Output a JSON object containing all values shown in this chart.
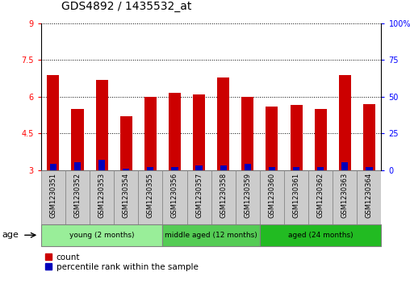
{
  "title": "GDS4892 / 1435532_at",
  "samples": [
    "GSM1230351",
    "GSM1230352",
    "GSM1230353",
    "GSM1230354",
    "GSM1230355",
    "GSM1230356",
    "GSM1230357",
    "GSM1230358",
    "GSM1230359",
    "GSM1230360",
    "GSM1230361",
    "GSM1230362",
    "GSM1230363",
    "GSM1230364"
  ],
  "count_values": [
    6.9,
    5.5,
    6.7,
    5.2,
    6.0,
    6.15,
    6.1,
    6.8,
    6.0,
    5.6,
    5.65,
    5.5,
    6.9,
    5.7
  ],
  "percentile_values": [
    4,
    5,
    7,
    1,
    2,
    2,
    3,
    3,
    4,
    2,
    2,
    2,
    5,
    2
  ],
  "base_value": 3.0,
  "ylim_left": [
    3,
    9
  ],
  "ylim_right": [
    0,
    100
  ],
  "yticks_left": [
    3,
    4.5,
    6,
    7.5,
    9
  ],
  "ytick_labels_left": [
    "3",
    "4.5",
    "6",
    "7.5",
    "9"
  ],
  "yticks_right": [
    0,
    25,
    50,
    75,
    100
  ],
  "ytick_labels_right": [
    "0",
    "25",
    "50",
    "75",
    "100%"
  ],
  "groups": [
    {
      "label": "young (2 months)",
      "start": 0,
      "end": 5,
      "color": "#99EE99"
    },
    {
      "label": "middle aged (12 months)",
      "start": 5,
      "end": 9,
      "color": "#55CC55"
    },
    {
      "label": "aged (24 months)",
      "start": 9,
      "end": 14,
      "color": "#22BB22"
    }
  ],
  "age_label": "age",
  "bar_color_count": "#CC0000",
  "bar_color_percentile": "#0000BB",
  "bar_width": 0.5,
  "tick_area_color": "#CCCCCC",
  "legend_count_label": "count",
  "legend_percentile_label": "percentile rank within the sample",
  "title_fontsize": 10,
  "axis_fontsize": 7,
  "label_fontsize": 7.5
}
